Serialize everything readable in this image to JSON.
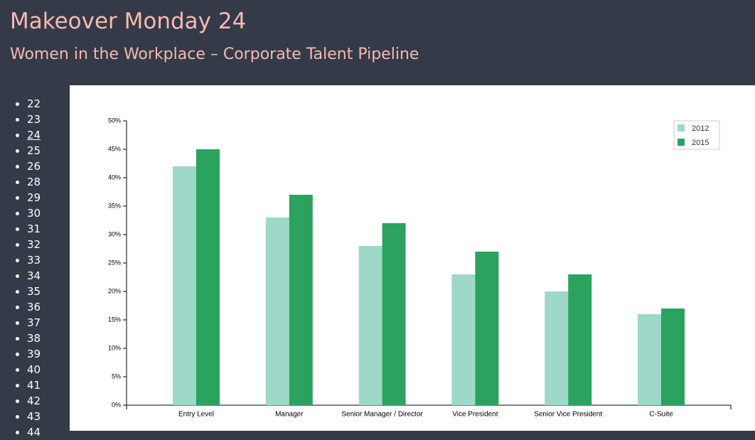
{
  "header": {
    "title": "Makeover Monday 24",
    "subtitle": "Women in the Workplace – Corporate Talent Pipeline"
  },
  "nav": {
    "items": [
      "22",
      "23",
      "24",
      "25",
      "26",
      "28",
      "29",
      "30",
      "31",
      "32",
      "33",
      "34",
      "35",
      "36",
      "37",
      "38",
      "39",
      "40",
      "41",
      "42",
      "43",
      "44"
    ],
    "current": "24"
  },
  "chart_data": {
    "type": "bar",
    "categories": [
      "Entry Level",
      "Manager",
      "Senior Manager / Director",
      "Vice President",
      "Senior Vice President",
      "C-Suite"
    ],
    "series": [
      {
        "name": "2012",
        "color": "#9dd8c8",
        "values": [
          42,
          33,
          28,
          23,
          20,
          16
        ]
      },
      {
        "name": "2015",
        "color": "#2ca25f",
        "values": [
          45,
          37,
          32,
          27,
          23,
          17
        ]
      }
    ],
    "ylim": [
      0,
      50
    ],
    "yticks": [
      {
        "value": 0,
        "label": "0%"
      },
      {
        "value": 5,
        "label": "5%"
      },
      {
        "value": 10,
        "label": "10%"
      },
      {
        "value": 15,
        "label": "15%"
      },
      {
        "value": 20,
        "label": "20%"
      },
      {
        "value": 25,
        "label": "25%"
      },
      {
        "value": 30,
        "label": "30%"
      },
      {
        "value": 35,
        "label": "35%"
      },
      {
        "value": 40,
        "label": "40%"
      },
      {
        "value": 45,
        "label": "45%"
      },
      {
        "value": 50,
        "label": "50%"
      }
    ],
    "legend": "top-right"
  }
}
